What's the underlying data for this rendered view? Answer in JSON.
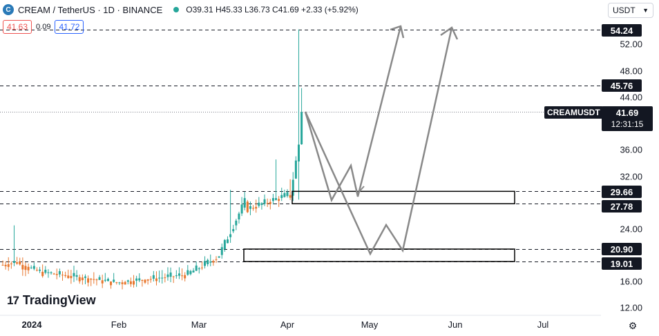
{
  "header": {
    "logo_letter": "C",
    "title": "CREAM / TetherUS · 1D · BINANCE",
    "ohlc": "O39.31 H45.33 L36.73 C41.69 +2.33 (+5.92%)"
  },
  "quote": {
    "bid": "41.63",
    "spread": "0.09",
    "ask": "41.72"
  },
  "currency_select": {
    "value": "USDT"
  },
  "price_axis": {
    "ticks": [
      "52.00",
      "48.00",
      "44.00",
      "36.00",
      "32.00",
      "24.00",
      "16.00",
      "12.00"
    ],
    "level_labels": [
      "54.24",
      "45.76",
      "29.66",
      "27.78",
      "20.90",
      "19.01"
    ]
  },
  "current_price": {
    "symbol": "CREAMUSDT",
    "price": "41.69",
    "countdown": "12:31:15"
  },
  "time_axis": {
    "labels": [
      "2024",
      "Feb",
      "Mar",
      "Apr",
      "May",
      "Jun",
      "Jul"
    ]
  },
  "brand": {
    "mark": "17",
    "name": "TradingView"
  },
  "colors": {
    "up": "#26a69a",
    "down": "#e8772e",
    "ask": "#2962ff",
    "bid": "#ef5350",
    "label_bg": "#131722"
  },
  "chart_data": {
    "type": "candlestick",
    "symbol": "CREAMUSDT",
    "interval": "1D",
    "last": {
      "open": 39.31,
      "high": 45.33,
      "low": 36.73,
      "close": 41.69,
      "change": 2.33,
      "change_pct": 5.92
    },
    "ylim": [
      12,
      56
    ],
    "horizontal_levels": [
      54.24,
      45.76,
      29.66,
      27.78,
      20.9,
      19.01
    ],
    "zones": [
      {
        "low": 27.78,
        "high": 29.66
      },
      {
        "low": 19.01,
        "high": 20.9
      }
    ]
  }
}
